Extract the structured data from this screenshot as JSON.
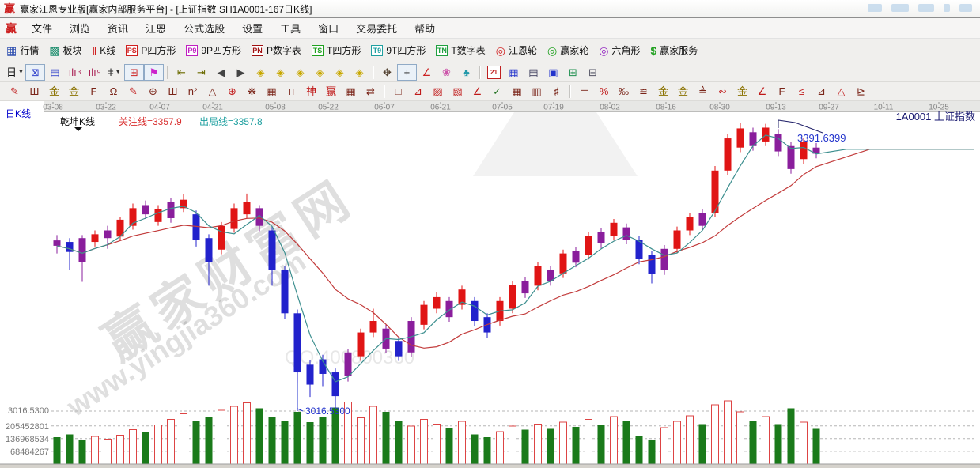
{
  "window": {
    "logo": "赢",
    "title": "赢家江恩专业版[赢家内部服务平台] - [上证指数  SH1A0001-167日K线]"
  },
  "menu_bar": {
    "logo": "赢",
    "items": [
      "文件",
      "浏览",
      "资讯",
      "江恩",
      "公式选股",
      "设置",
      "工具",
      "窗口",
      "交易委托",
      "帮助"
    ]
  },
  "toolbar_main": {
    "items": [
      {
        "name": "quotes",
        "glyph": "▦",
        "color": "#3050b0",
        "label": "行情"
      },
      {
        "name": "sectors",
        "glyph": "▩",
        "color": "#1f8f6f",
        "label": "板块"
      },
      {
        "name": "kline",
        "glyph": "‖",
        "color": "#d02020",
        "label": "K线"
      },
      {
        "name": "p-square",
        "badge": "PS",
        "color": "#d02020",
        "label": "P四方形"
      },
      {
        "name": "9p-square",
        "badge": "P9",
        "color": "#c020c0",
        "label": "9P四方形"
      },
      {
        "name": "p-number-table",
        "badge": "PN",
        "color": "#a01010",
        "label": "P数字表"
      },
      {
        "name": "t-square",
        "badge": "TS",
        "color": "#20a020",
        "label": "T四方形"
      },
      {
        "name": "9t-square",
        "badge": "T9",
        "color": "#20a0a0",
        "label": "9T四方形"
      },
      {
        "name": "t-number-table",
        "badge": "TN",
        "color": "#20a040",
        "label": "T数字表"
      },
      {
        "name": "gann-wheel",
        "glyph": "◎",
        "color": "#d02020",
        "label": "江恩轮"
      },
      {
        "name": "winner-wheel",
        "glyph": "◎",
        "color": "#20a020",
        "label": "赢家轮"
      },
      {
        "name": "hexagon",
        "glyph": "◎",
        "color": "#9020c0",
        "label": "六角形"
      },
      {
        "name": "winner-service",
        "glyph": "$",
        "color": "#20a020",
        "label": "赢家服务"
      }
    ]
  },
  "toolbar_nav": {
    "items": [
      {
        "name": "period-day-dropdown",
        "g": "日",
        "dd": true,
        "c": "#111"
      },
      {
        "name": "network-view",
        "g": "⊠",
        "c": "#3344cc",
        "sel": true
      },
      {
        "name": "info-view",
        "g": "▤",
        "c": "#3344cc"
      },
      {
        "name": "chart3-view",
        "g": "ılı",
        "sub": "3",
        "c": "#aa2255"
      },
      {
        "name": "chart9-view",
        "g": "ılı",
        "sub": "9",
        "c": "#aa2255"
      },
      {
        "name": "candle-style-dropdown",
        "g": "ǂ",
        "dd": true,
        "c": "#333"
      },
      {
        "name": "region-highlight",
        "g": "⊞",
        "c": "#cc2222",
        "sel": true
      },
      {
        "name": "color-flag",
        "g": "⚑",
        "c": "#cc22cc",
        "sel": true
      },
      "|",
      {
        "name": "nav-first",
        "g": "⇤",
        "c": "#6b6b00"
      },
      {
        "name": "nav-last",
        "g": "⇥",
        "c": "#6b6b00"
      },
      {
        "name": "nav-prev",
        "g": "◀",
        "c": "#444"
      },
      {
        "name": "nav-next",
        "g": "▶",
        "c": "#444"
      },
      {
        "name": "diamond-left",
        "g": "◈",
        "c": "#c8a800"
      },
      {
        "name": "diamond-right",
        "g": "◈",
        "c": "#c8a800"
      },
      {
        "name": "diamond-horizontal",
        "g": "◈",
        "c": "#c8a800"
      },
      {
        "name": "diamond-compress",
        "g": "◈",
        "c": "#c8a800"
      },
      {
        "name": "diamond-expand",
        "g": "◈",
        "c": "#c8a800"
      },
      {
        "name": "diamond-full",
        "g": "◈",
        "c": "#c8a800"
      },
      "|",
      {
        "name": "pan-hand",
        "g": "✥",
        "c": "#554433"
      },
      {
        "name": "crosshair",
        "g": "+",
        "c": "#111",
        "sel": true
      },
      {
        "name": "angle-tool",
        "g": "∠",
        "c": "#cc2222"
      },
      {
        "name": "flower-tool",
        "g": "❀",
        "c": "#cc55aa"
      },
      {
        "name": "brain-tool",
        "g": "♣",
        "c": "#2299aa"
      },
      "|",
      {
        "name": "calendar-tool",
        "cal": "21"
      },
      {
        "name": "calculator-tool",
        "g": "▦",
        "c": "#2233cc"
      },
      {
        "name": "notes-tool",
        "g": "▤",
        "c": "#333355"
      },
      {
        "name": "save-tool",
        "g": "▣",
        "c": "#2233cc"
      },
      {
        "name": "network-tool",
        "g": "⊞",
        "c": "#209050"
      },
      {
        "name": "print-tool",
        "g": "⊟",
        "c": "#555566"
      }
    ]
  },
  "toolbar_draw": {
    "items": [
      {
        "g": "✎",
        "c": "#c01818"
      },
      {
        "g": "Ш"
      },
      {
        "g": "金",
        "c": "#8a7200"
      },
      {
        "g": "金",
        "c": "#8a7200"
      },
      {
        "g": "F"
      },
      {
        "g": "Ω"
      },
      {
        "g": "✎",
        "c": "#c01818"
      },
      {
        "g": "⊕"
      },
      {
        "g": "Ш"
      },
      {
        "g": "n²"
      },
      {
        "g": "△"
      },
      {
        "g": "⊕",
        "c": "#c01818"
      },
      {
        "g": "❋"
      },
      {
        "g": "▦"
      },
      {
        "g": "ʜ"
      },
      {
        "g": "神",
        "c": "#c01818"
      },
      {
        "g": "赢",
        "c": "#c01818"
      },
      {
        "g": "▦"
      },
      {
        "g": "⇄"
      },
      "|",
      {
        "g": "□"
      },
      {
        "g": "⊿",
        "c": "#c01818"
      },
      {
        "g": "▨",
        "c": "#c01818"
      },
      {
        "g": "▧",
        "c": "#c01818"
      },
      {
        "g": "∠",
        "c": "#c01818"
      },
      {
        "g": "✓",
        "c": "#207020"
      },
      {
        "g": "▦"
      },
      {
        "g": "▥"
      },
      {
        "g": "♯"
      },
      "|",
      {
        "g": "⊨"
      },
      {
        "g": "%",
        "c": "#c01818"
      },
      {
        "g": "‰"
      },
      {
        "g": "≌"
      },
      {
        "g": "金",
        "c": "#8a7200"
      },
      {
        "g": "金",
        "c": "#8a7200"
      },
      {
        "g": "≜"
      },
      {
        "g": "∾",
        "c": "#c01818"
      },
      {
        "g": "金",
        "c": "#8a7200"
      },
      {
        "g": "∠",
        "c": "#c01818"
      },
      {
        "g": "F"
      },
      {
        "g": "≤",
        "c": "#c01818"
      },
      {
        "g": "⊿"
      },
      {
        "g": "△",
        "c": "#c01818"
      },
      {
        "g": "⊵"
      }
    ]
  },
  "labels": {
    "pane_type": "日K线",
    "indicator": "乾坤K线",
    "watch_line": "关注线=3357.9",
    "exit_line": "出局线=3357.8",
    "symbol": "1A0001 上证指数",
    "high_marker": "3391.6399",
    "low_marker": "3016.5300",
    "price_axis_min": "3016.5300",
    "volume_axis": [
      "205452801",
      "136968534",
      "68484267"
    ],
    "watermark_brand": "赢家财富网",
    "watermark_url": "www.yingjia360.com",
    "watermark_qq": "QQ:400800360"
  },
  "colors": {
    "candle_up": "#e01515",
    "candle_down": "#2222cc",
    "candle_neutral": "#8a1e9c",
    "ma_short": "#3d8f8f",
    "ma_long": "#c23b3b",
    "vol_up_stroke": "#dd4444",
    "vol_down_fill": "#1a7a1a",
    "grid": "#b5b5b5",
    "axis_text": "#787878",
    "blue_label": "#2233cc",
    "red_label": "#d93030",
    "teal_label": "#1fa0a0",
    "symbol_label": "#191970"
  },
  "chart_data": {
    "type": "candlestick+volume",
    "symbol": "上证指数 SH1A0001",
    "period": "167日K线",
    "price_range": [
      3016.53,
      3391.64
    ],
    "high_marker": 3391.6399,
    "low_marker": 3016.53,
    "watch_line": 3357.9,
    "exit_line": 3357.8,
    "ma_short_period": 4,
    "ma_long_period": 12,
    "x_dates": [
      [
        "03-08",
        67
      ],
      [
        "03-22",
        134
      ],
      [
        "04-07",
        202
      ],
      [
        "04-21",
        269
      ],
      [
        "05-08",
        348
      ],
      [
        "05-22",
        415
      ],
      [
        "06-07",
        486
      ],
      [
        "06-21",
        557
      ],
      [
        "07-05",
        635
      ],
      [
        "07-19",
        700
      ],
      [
        "08-02",
        771
      ],
      [
        "08-16",
        842
      ],
      [
        "08-30",
        910
      ],
      [
        "09-13",
        981
      ],
      [
        "09-27",
        1048
      ],
      [
        "10-11",
        1117
      ],
      [
        "10-25",
        1187
      ]
    ],
    "volume_gridlines": [
      68484267,
      136968534,
      205452801
    ],
    "candles": [
      [
        3239,
        3232,
        3246,
        3222,
        "p",
        145
      ],
      [
        3237,
        3224,
        3242,
        3201,
        "b",
        160
      ],
      [
        3242,
        3211,
        3246,
        3185,
        "p",
        130
      ],
      [
        3237,
        3247,
        3252,
        3231,
        "r",
        150
      ],
      [
        3242,
        3252,
        3258,
        3228,
        "p",
        135
      ],
      [
        3244,
        3266,
        3270,
        3240,
        "r",
        155
      ],
      [
        3258,
        3281,
        3287,
        3253,
        "r",
        185
      ],
      [
        3285,
        3273,
        3291,
        3267,
        "p",
        170
      ],
      [
        3263,
        3280,
        3285,
        3258,
        "r",
        210
      ],
      [
        3268,
        3289,
        3294,
        3262,
        "p",
        240
      ],
      [
        3281,
        3292,
        3299,
        3276,
        "r",
        270
      ],
      [
        3273,
        3240,
        3278,
        3231,
        "b",
        230
      ],
      [
        3242,
        3211,
        3247,
        3180,
        "b",
        255
      ],
      [
        3227,
        3258,
        3263,
        3221,
        "r",
        290
      ],
      [
        3254,
        3281,
        3287,
        3249,
        "r",
        310
      ],
      [
        3273,
        3289,
        3300,
        3268,
        "r",
        330
      ],
      [
        3281,
        3258,
        3285,
        3251,
        "p",
        300
      ],
      [
        3252,
        3201,
        3257,
        3180,
        "b",
        255
      ],
      [
        3201,
        3144,
        3206,
        3137,
        "b",
        235
      ],
      [
        3144,
        3067,
        3149,
        3016.53,
        "b",
        280
      ],
      [
        3077,
        3051,
        3083,
        3035,
        "b",
        225
      ],
      [
        3084,
        3065,
        3090,
        3049,
        "b",
        255
      ],
      [
        3067,
        3036,
        3072,
        3021,
        "b",
        305
      ],
      [
        3062,
        3093,
        3098,
        3055,
        "p",
        335
      ],
      [
        3088,
        3119,
        3124,
        3082,
        "r",
        250
      ],
      [
        3119,
        3134,
        3150,
        3113,
        "r",
        310
      ],
      [
        3124,
        3098,
        3129,
        3092,
        "p",
        280
      ],
      [
        3108,
        3088,
        3113,
        3082,
        "b",
        230
      ],
      [
        3093,
        3134,
        3139,
        3087,
        "p",
        205
      ],
      [
        3129,
        3155,
        3160,
        3123,
        "r",
        240
      ],
      [
        3150,
        3165,
        3172,
        3144,
        "r",
        215
      ],
      [
        3160,
        3139,
        3165,
        3133,
        "p",
        195
      ],
      [
        3155,
        3175,
        3180,
        3149,
        "r",
        230
      ],
      [
        3160,
        3134,
        3165,
        3127,
        "b",
        160
      ],
      [
        3139,
        3119,
        3144,
        3112,
        "b",
        145
      ],
      [
        3134,
        3160,
        3165,
        3128,
        "r",
        175
      ],
      [
        3150,
        3181,
        3186,
        3144,
        "r",
        205
      ],
      [
        3186,
        3170,
        3191,
        3164,
        "p",
        185
      ],
      [
        3180,
        3206,
        3211,
        3174,
        "r",
        215
      ],
      [
        3201,
        3186,
        3206,
        3180,
        "p",
        190
      ],
      [
        3196,
        3222,
        3227,
        3190,
        "r",
        225
      ],
      [
        3225,
        3210,
        3230,
        3204,
        "p",
        200
      ],
      [
        3220,
        3245,
        3250,
        3214,
        "r",
        240
      ],
      [
        3250,
        3235,
        3255,
        3229,
        "p",
        210
      ],
      [
        3245,
        3262,
        3267,
        3239,
        "r",
        255
      ],
      [
        3256,
        3240,
        3261,
        3234,
        "p",
        230
      ],
      [
        3240,
        3215,
        3245,
        3208,
        "b",
        150
      ],
      [
        3220,
        3195,
        3225,
        3183,
        "b",
        130
      ],
      [
        3200,
        3228,
        3233,
        3194,
        "p",
        195
      ],
      [
        3228,
        3252,
        3257,
        3222,
        "r",
        230
      ],
      [
        3252,
        3270,
        3275,
        3246,
        "r",
        260
      ],
      [
        3275,
        3258,
        3280,
        3252,
        "p",
        215
      ],
      [
        3275,
        3330,
        3336,
        3269,
        "r",
        320
      ],
      [
        3330,
        3372,
        3378,
        3324,
        "r",
        340
      ],
      [
        3360,
        3385,
        3391.64,
        3354,
        "r",
        280
      ],
      [
        3380,
        3362,
        3386,
        3356,
        "p",
        235
      ],
      [
        3368,
        3386,
        3391,
        3362,
        "r",
        255
      ],
      [
        3378,
        3355,
        3384,
        3349,
        "p",
        215
      ],
      [
        3362,
        3332,
        3368,
        3326,
        "p",
        300
      ],
      [
        3345,
        3368,
        3373,
        3339,
        "r",
        225
      ],
      [
        3360,
        3352,
        3366,
        3346,
        "p",
        190
      ]
    ]
  }
}
